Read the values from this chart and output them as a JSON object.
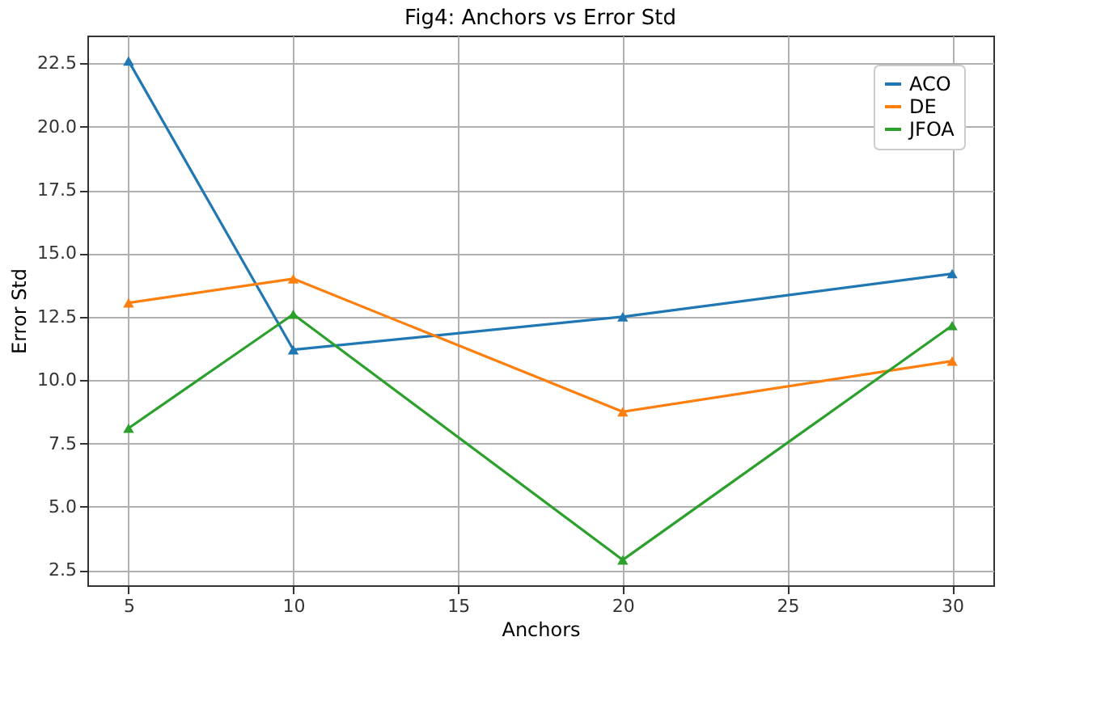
{
  "chart_data": {
    "type": "line",
    "title": "Fig4: Anchors vs Error Std",
    "xlabel": "Anchors",
    "ylabel": "Error Std",
    "x": [
      5,
      10,
      20,
      30
    ],
    "series": [
      {
        "name": "ACO",
        "color": "#1f77b4",
        "values": [
          22.6,
          11.2,
          12.5,
          14.2
        ]
      },
      {
        "name": "DE",
        "color": "#ff7f0e",
        "values": [
          13.05,
          14.0,
          8.75,
          10.75
        ]
      },
      {
        "name": "JFOA",
        "color": "#2ca02c",
        "values": [
          8.1,
          12.6,
          2.9,
          12.15
        ]
      }
    ],
    "xlim": [
      3.75,
      31.25
    ],
    "xticks": [
      5,
      10,
      15,
      20,
      25,
      30
    ],
    "ylim": [
      1.9,
      23.6
    ],
    "yticks": [
      {
        "value": 2.5,
        "label": "2.5"
      },
      {
        "value": 5,
        "label": "5.0"
      },
      {
        "value": 7.5,
        "label": "7.5"
      },
      {
        "value": 10,
        "label": "10.0"
      },
      {
        "value": 12.5,
        "label": "12.5"
      },
      {
        "value": 15,
        "label": "15.0"
      },
      {
        "value": 17.5,
        "label": "17.5"
      },
      {
        "value": 20,
        "label": "20.0"
      },
      {
        "value": 22.5,
        "label": "22.5"
      }
    ],
    "grid": true,
    "legend": "top right",
    "marker": "triangle",
    "line_style": "solid"
  }
}
